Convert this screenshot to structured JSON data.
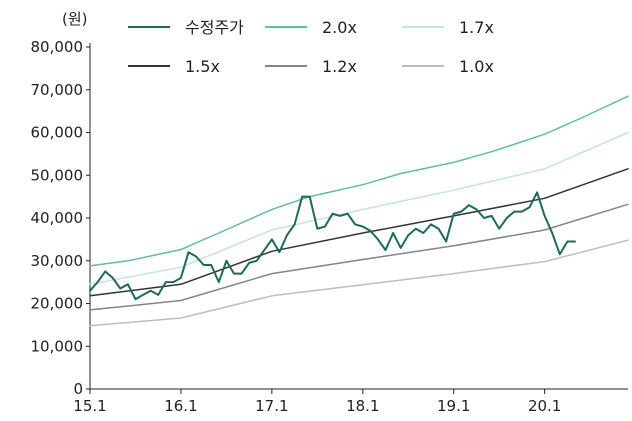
{
  "chart_data": {
    "type": "line",
    "title": "",
    "ylabel": "(원)",
    "xlabel": "",
    "ylim": [
      0,
      80000
    ],
    "xlim": [
      "2015-01",
      "2020-12"
    ],
    "y_ticks": [
      0,
      10000,
      20000,
      30000,
      40000,
      50000,
      60000,
      70000,
      80000
    ],
    "y_tick_labels": [
      "0",
      "10,000",
      "20,000",
      "30,000",
      "40,000",
      "50,000",
      "60,000",
      "70,000",
      "80,000"
    ],
    "x_tick_labels": [
      "15.1",
      "16.1",
      "17.1",
      "18.1",
      "19.1",
      "20.1"
    ],
    "x_tick_values": [
      "2015-01",
      "2016-01",
      "2017-01",
      "2018-01",
      "2019-01",
      "2020-01"
    ],
    "legend_position": "top",
    "grid": false,
    "series": [
      {
        "name": "수정주가",
        "color": "#1c6b5a",
        "width": 2,
        "points": [
          [
            "2015-01",
            23000
          ],
          [
            "2015-02",
            25000
          ],
          [
            "2015-03",
            27500
          ],
          [
            "2015-04",
            26000
          ],
          [
            "2015-05",
            23500
          ],
          [
            "2015-06",
            24500
          ],
          [
            "2015-07",
            21000
          ],
          [
            "2015-08",
            22000
          ],
          [
            "2015-09",
            23000
          ],
          [
            "2015-10",
            22000
          ],
          [
            "2015-11",
            25000
          ],
          [
            "2015-12",
            25000
          ],
          [
            "2016-01",
            26000
          ],
          [
            "2016-02",
            32000
          ],
          [
            "2016-03",
            31000
          ],
          [
            "2016-04",
            29000
          ],
          [
            "2016-05",
            29000
          ],
          [
            "2016-06",
            25000
          ],
          [
            "2016-07",
            30000
          ],
          [
            "2016-08",
            27000
          ],
          [
            "2016-09",
            27000
          ],
          [
            "2016-10",
            29500
          ],
          [
            "2016-11",
            30000
          ],
          [
            "2016-12",
            32500
          ],
          [
            "2017-01",
            35000
          ],
          [
            "2017-02",
            32000
          ],
          [
            "2017-03",
            36000
          ],
          [
            "2017-04",
            38500
          ],
          [
            "2017-05",
            45000
          ],
          [
            "2017-06",
            45000
          ],
          [
            "2017-07",
            37500
          ],
          [
            "2017-08",
            38000
          ],
          [
            "2017-09",
            41000
          ],
          [
            "2017-10",
            40500
          ],
          [
            "2017-11",
            41000
          ],
          [
            "2017-12",
            38500
          ],
          [
            "2018-01",
            38000
          ],
          [
            "2018-02",
            37000
          ],
          [
            "2018-03",
            35000
          ],
          [
            "2018-04",
            32500
          ],
          [
            "2018-05",
            36500
          ],
          [
            "2018-06",
            33000
          ],
          [
            "2018-07",
            36000
          ],
          [
            "2018-08",
            37500
          ],
          [
            "2018-09",
            36500
          ],
          [
            "2018-10",
            38500
          ],
          [
            "2018-11",
            37500
          ],
          [
            "2018-12",
            34500
          ],
          [
            "2019-01",
            41000
          ],
          [
            "2019-02",
            41500
          ],
          [
            "2019-03",
            43000
          ],
          [
            "2019-04",
            42000
          ],
          [
            "2019-05",
            40000
          ],
          [
            "2019-06",
            40500
          ],
          [
            "2019-07",
            37500
          ],
          [
            "2019-08",
            40000
          ],
          [
            "2019-09",
            41500
          ],
          [
            "2019-10",
            41500
          ],
          [
            "2019-11",
            42500
          ],
          [
            "2019-12",
            46000
          ],
          [
            "2020-01",
            40500
          ],
          [
            "2020-02",
            36500
          ],
          [
            "2020-03",
            31500
          ],
          [
            "2020-04",
            34500
          ],
          [
            "2020-05",
            34500
          ]
        ]
      },
      {
        "name": "2.0x",
        "color": "#5fbfa0",
        "width": 1.5,
        "points": [
          [
            "2015-01",
            28800
          ],
          [
            "2015-06",
            30000
          ],
          [
            "2016-01",
            32600
          ],
          [
            "2016-06",
            36500
          ],
          [
            "2017-01",
            42000
          ],
          [
            "2017-06",
            45000
          ],
          [
            "2018-01",
            47800
          ],
          [
            "2018-06",
            50400
          ],
          [
            "2019-01",
            53000
          ],
          [
            "2019-06",
            55500
          ],
          [
            "2020-01",
            59600
          ],
          [
            "2020-06",
            63500
          ],
          [
            "2020-12",
            68500
          ]
        ]
      },
      {
        "name": "1.7x",
        "color": "#c4e6d8",
        "width": 1.5,
        "points": [
          [
            "2015-01",
            24500
          ],
          [
            "2016-01",
            28500
          ],
          [
            "2017-01",
            37200
          ],
          [
            "2018-01",
            42000
          ],
          [
            "2019-01",
            46500
          ],
          [
            "2020-01",
            51500
          ],
          [
            "2020-12",
            60000
          ]
        ]
      },
      {
        "name": "1.5x",
        "color": "#333333",
        "width": 1.5,
        "points": [
          [
            "2015-01",
            21800
          ],
          [
            "2016-01",
            24500
          ],
          [
            "2017-01",
            32200
          ],
          [
            "2018-01",
            36500
          ],
          [
            "2019-01",
            40500
          ],
          [
            "2020-01",
            44600
          ],
          [
            "2020-12",
            51500
          ]
        ]
      },
      {
        "name": "1.2x",
        "color": "#858585",
        "width": 1.5,
        "points": [
          [
            "2015-01",
            18500
          ],
          [
            "2016-01",
            20700
          ],
          [
            "2017-01",
            27000
          ],
          [
            "2018-01",
            30300
          ],
          [
            "2019-01",
            33500
          ],
          [
            "2020-01",
            37200
          ],
          [
            "2020-12",
            43200
          ]
        ]
      },
      {
        "name": "1.0x",
        "color": "#bdbdbd",
        "width": 1.5,
        "points": [
          [
            "2015-01",
            14800
          ],
          [
            "2016-01",
            16600
          ],
          [
            "2017-01",
            21800
          ],
          [
            "2018-01",
            24400
          ],
          [
            "2019-01",
            27000
          ],
          [
            "2020-01",
            29800
          ],
          [
            "2020-12",
            34800
          ]
        ]
      }
    ]
  }
}
